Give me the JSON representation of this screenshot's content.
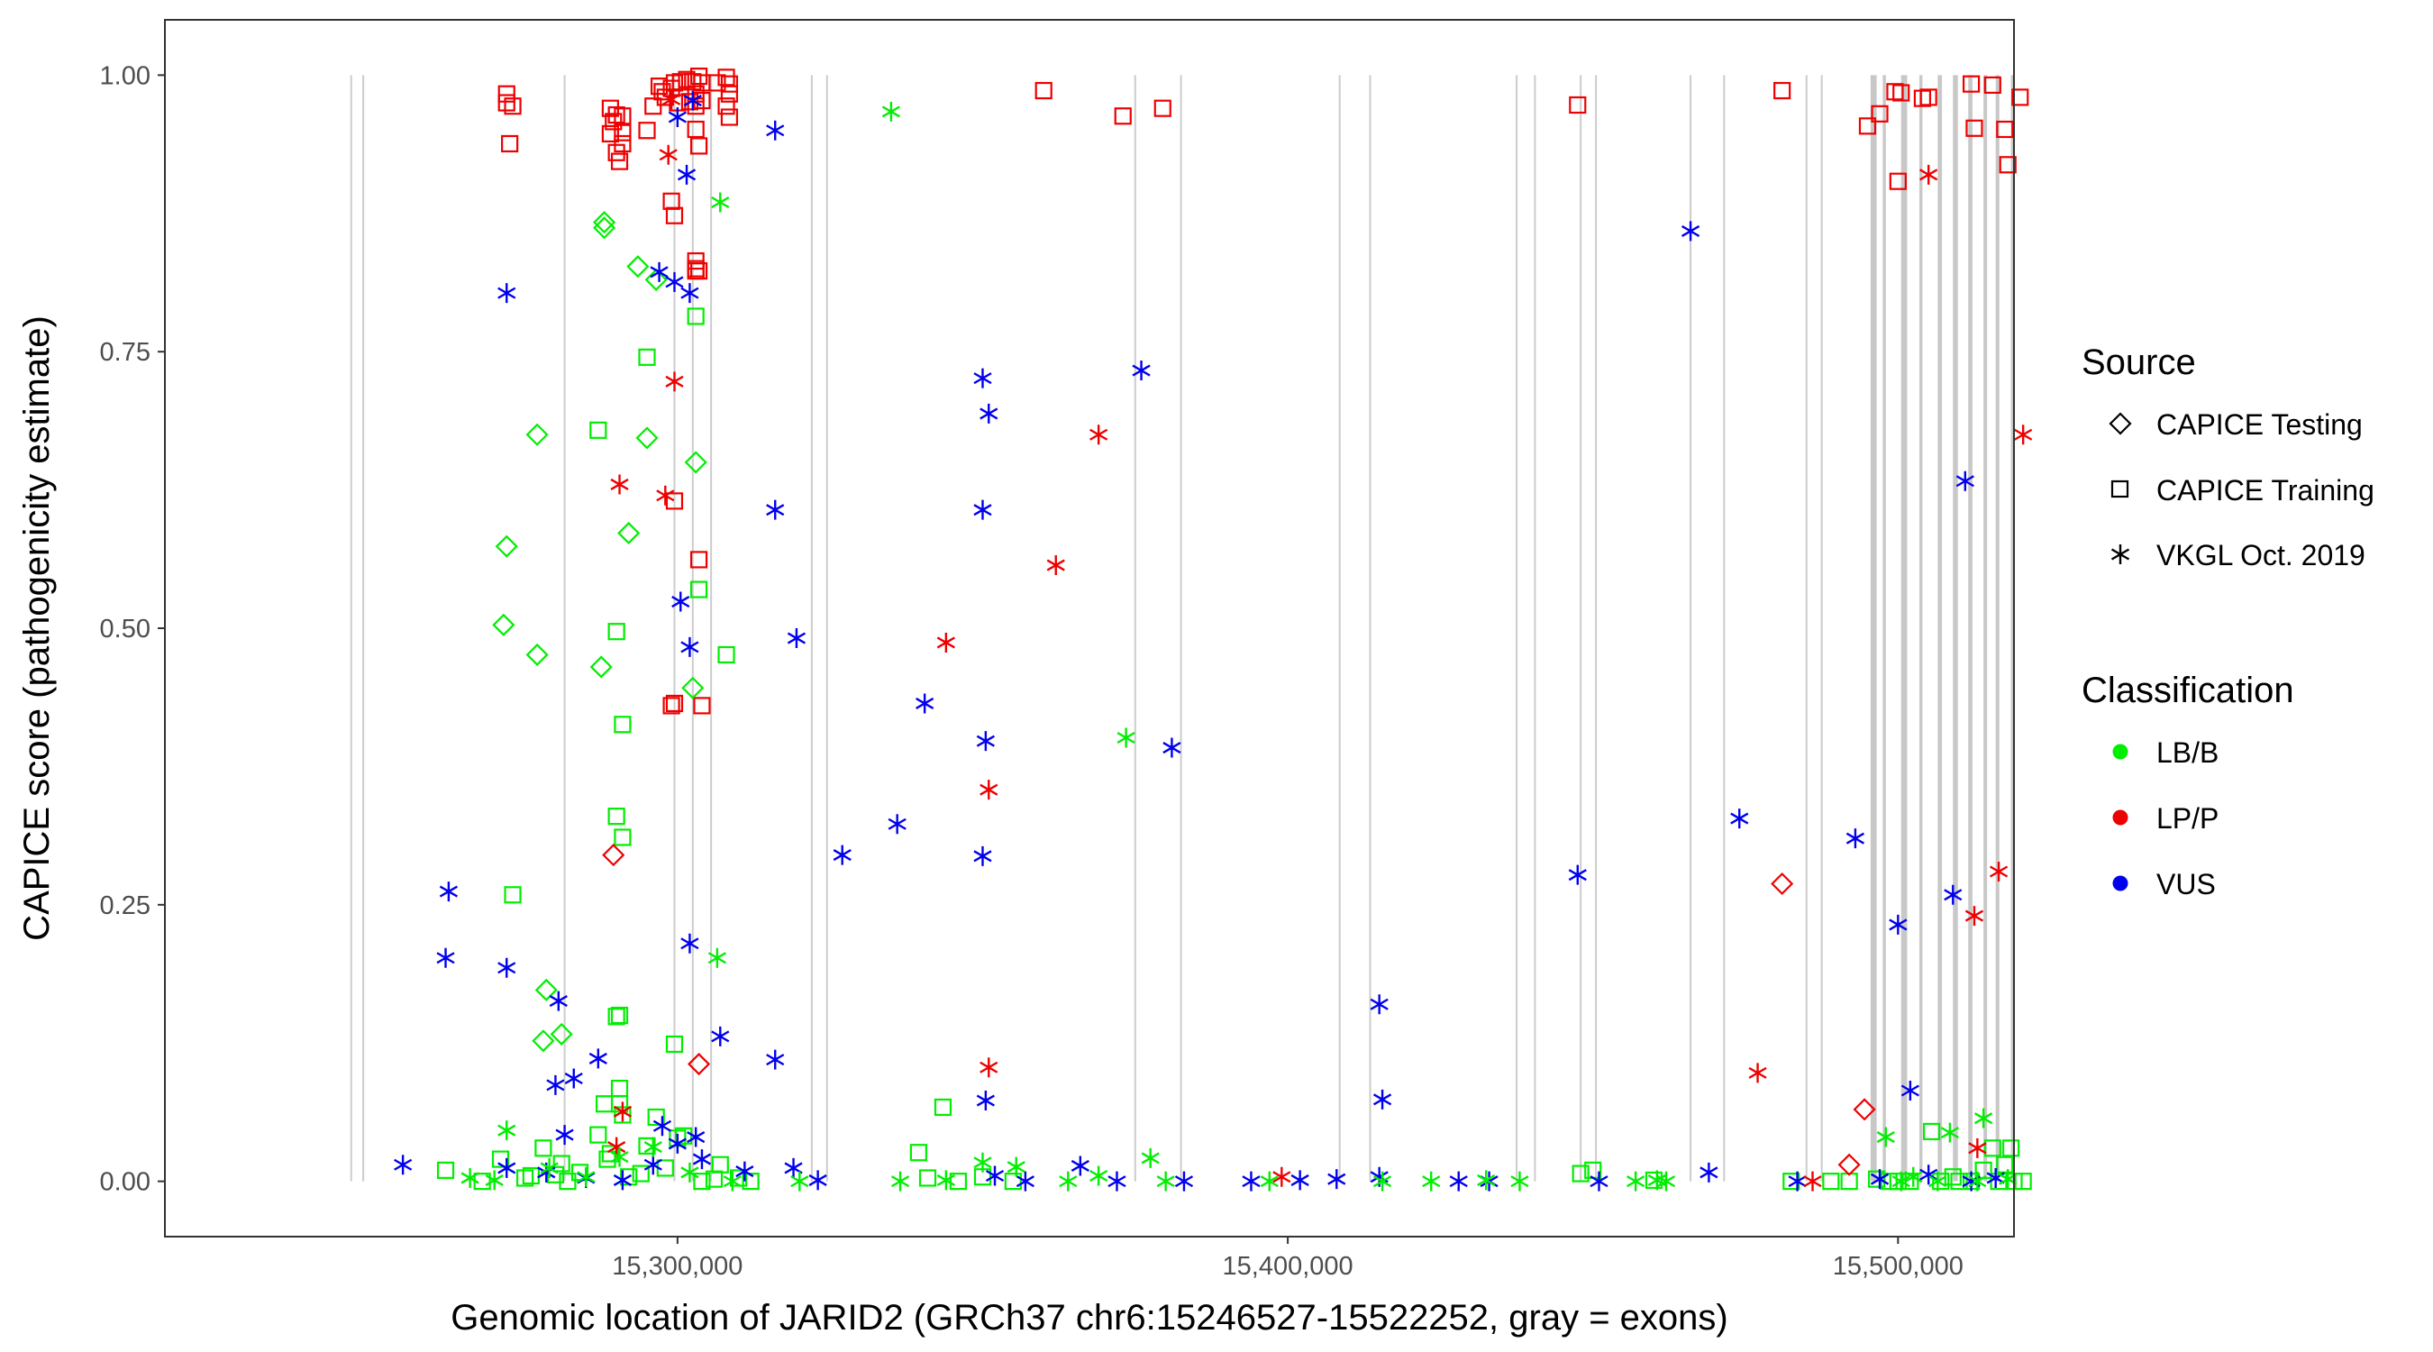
{
  "chart_data": {
    "type": "scatter",
    "xlabel": "Genomic location of JARID2 (GRCh37 chr6:15246527-15522252, gray = exons)",
    "ylabel": "CAPICE score (pathogenicity estimate)",
    "xlim": [
      15216000,
      15519000
    ],
    "ylim": [
      -0.05,
      1.05
    ],
    "x_ticks": [
      15300000,
      15400000,
      15500000
    ],
    "x_tick_labels": [
      "15,300,000",
      "15,400,000",
      "15,500,000"
    ],
    "y_ticks": [
      0,
      0.25,
      0.5,
      0.75,
      1
    ],
    "y_tick_labels": [
      "0.00",
      "0.25",
      "0.50",
      "0.75",
      "1.00"
    ],
    "exon_lines": [
      15246527,
      15248500,
      15281500,
      15299500,
      15302500,
      15305500,
      15322000,
      15324500,
      15375000,
      15382500,
      15408500,
      15413500,
      15437500,
      15440500,
      15448000,
      15450500,
      15466000,
      15471500,
      15485000,
      15487500
    ],
    "exon_bands": [
      [
        15495500,
        15496500
      ],
      [
        15497500,
        15498000
      ],
      [
        15500500,
        15501500
      ],
      [
        15503500,
        15504000
      ],
      [
        15506500,
        15507200
      ],
      [
        15509000,
        15509800
      ],
      [
        15511500,
        15512200
      ],
      [
        15514000,
        15514600
      ],
      [
        15516000,
        15516600
      ],
      [
        15518500,
        15519000
      ]
    ],
    "legend": {
      "source_title": "Source",
      "source_items": [
        "CAPICE Testing",
        "CAPICE Training",
        "VKGL Oct. 2019"
      ],
      "class_title": "Classification",
      "class_items": [
        "LB/B",
        "LP/P",
        "VUS"
      ]
    },
    "colors": {
      "LB/B": "#00ee00",
      "LP/P": "#ee0000",
      "VUS": "#0000ee"
    },
    "series": [
      {
        "source": "CAPICE Training",
        "classification": "LP/P",
        "x": [
          15272000,
          15272000,
          15272500,
          15273000,
          15289500,
          15289000,
          15290000,
          15291000,
          15291000,
          15290500,
          15290000,
          15291000,
          15289000,
          15295000,
          15296000,
          15297500,
          15298000,
          15297000,
          15299000,
          15299500,
          15300000,
          15300500,
          15301500,
          15302500,
          15303000,
          15303500,
          15304000,
          15303000,
          15302000,
          15304000,
          15303000,
          15303500,
          15303000,
          15306500,
          15308000,
          15308500,
          15308500,
          15308000,
          15308500,
          15299000,
          15299500,
          15303000,
          15303000,
          15303500,
          15299500,
          15303500,
          15304000,
          15299000,
          15299500,
          15360000,
          15373000,
          15379500,
          15447500,
          15481000,
          15495000,
          15497000,
          15499500,
          15500500,
          15500000,
          15504000,
          15505000,
          15512000,
          15512500,
          15515500,
          15517500,
          15518000,
          15520000
        ],
        "y": [
          0.983,
          0.975,
          0.938,
          0.972,
          0.958,
          0.97,
          0.964,
          0.948,
          0.938,
          0.922,
          0.93,
          0.963,
          0.947,
          0.95,
          0.972,
          0.985,
          0.98,
          0.99,
          0.988,
          0.993,
          0.975,
          0.994,
          0.996,
          0.994,
          0.972,
          0.999,
          0.993,
          0.983,
          0.976,
          0.977,
          0.951,
          0.936,
          0.832,
          0.993,
          0.998,
          0.992,
          0.983,
          0.972,
          0.962,
          0.886,
          0.873,
          0.823,
          0.825,
          0.823,
          0.615,
          0.562,
          0.43,
          0.43,
          0.432,
          0.986,
          0.963,
          0.97,
          0.973,
          0.986,
          0.954,
          0.965,
          0.985,
          0.984,
          0.904,
          0.979,
          0.98,
          0.992,
          0.952,
          0.991,
          0.951,
          0.919,
          0.98
        ]
      },
      {
        "source": "CAPICE Training",
        "classification": "LB/B",
        "x": [
          15303000,
          15295000,
          15287000,
          15273000,
          15290000,
          15303500,
          15291000,
          15308000,
          15290000,
          15290000,
          15290500,
          15291000,
          15280000,
          15290500,
          15291000,
          15299500,
          15290500,
          15288000,
          15296500,
          15343500,
          15262000,
          15268000,
          15271000,
          15275000,
          15278000,
          15281000,
          15284000,
          15287000,
          15289000,
          15292000,
          15295000,
          15298000,
          15301000,
          15304000,
          15307000,
          15310000,
          15312000,
          15276000,
          15282000,
          15288500,
          15294000,
          15300000,
          15306000,
          15339500,
          15341000,
          15346000,
          15350000,
          15355000,
          15448000,
          15450000,
          15460000,
          15482500,
          15489000,
          15492000,
          15496500,
          15498500,
          15502000,
          15505500,
          15507000,
          15509000,
          15512000,
          15514000,
          15515500,
          15516500,
          15517500,
          15518500,
          15519000,
          15500000,
          15510000,
          15520500
        ],
        "y": [
          0.782,
          0.745,
          0.679,
          0.259,
          0.497,
          0.535,
          0.413,
          0.476,
          0.33,
          0.149,
          0.15,
          0.311,
          0.006,
          0.084,
          0.06,
          0.124,
          0.07,
          0.07,
          0.058,
          0.067,
          0.01,
          0.0,
          0.02,
          0.003,
          0.03,
          0.016,
          0.008,
          0.042,
          0.025,
          0.004,
          0.032,
          0.012,
          0.041,
          0.0,
          0.015,
          0.003,
          0.0,
          0.005,
          0.0,
          0.02,
          0.007,
          0.039,
          0.002,
          0.026,
          0.003,
          0.0,
          0.004,
          0.0,
          0.007,
          0.01,
          0.001,
          0.0,
          0.0,
          0.0,
          0.002,
          0.0,
          0.0,
          0.045,
          0.0,
          0.004,
          0.0,
          0.01,
          0.03,
          0.0,
          0.015,
          0.03,
          0.0,
          0.0,
          0.0,
          0.0
        ]
      },
      {
        "source": "CAPICE Testing",
        "classification": "LB/B",
        "x": [
          15288000,
          15288000,
          15293500,
          15296500,
          15277000,
          15295000,
          15272000,
          15271500,
          15277000,
          15292000,
          15303000,
          15287500,
          15302500,
          15278500,
          15278000,
          15281000
        ],
        "y": [
          0.867,
          0.862,
          0.827,
          0.815,
          0.675,
          0.672,
          0.574,
          0.503,
          0.476,
          0.586,
          0.65,
          0.465,
          0.446,
          0.173,
          0.127,
          0.133
        ]
      },
      {
        "source": "CAPICE Testing",
        "classification": "LP/P",
        "x": [
          15289500,
          15303500,
          15481000,
          15494500,
          15492000
        ],
        "y": [
          0.295,
          0.106,
          0.269,
          0.065,
          0.015
        ]
      },
      {
        "source": "VKGL Oct. 2019",
        "classification": "VUS",
        "x": [
          15302500,
          15300000,
          15316000,
          15301500,
          15302000,
          15297000,
          15299500,
          15272000,
          15350000,
          15351000,
          15376000,
          15350000,
          15316000,
          15300500,
          15302000,
          15319500,
          15350500,
          15336000,
          15381000,
          15340500,
          15327000,
          15350000,
          15262500,
          15262000,
          15272000,
          15302000,
          15280500,
          15307000,
          15316000,
          15287000,
          15283000,
          15280000,
          15350500,
          15415000,
          15415500,
          15447500,
          15466000,
          15474000,
          15493000,
          15500000,
          15511000,
          15509000,
          15502000,
          15255000,
          15281500,
          15297500,
          15303000,
          15272000,
          15278500,
          15285000,
          15291000,
          15296000,
          15300000,
          15304000,
          15311000,
          15319000,
          15323000,
          15352000,
          15357000,
          15366000,
          15372000,
          15383000,
          15394000,
          15402000,
          15408000,
          15415000,
          15428000,
          15433000,
          15451000,
          15469000,
          15483500,
          15497000,
          15505000,
          15512000,
          15516000
        ],
        "y": [
          0.977,
          0.962,
          0.95,
          0.91,
          0.803,
          0.822,
          0.813,
          0.803,
          0.726,
          0.694,
          0.733,
          0.607,
          0.607,
          0.524,
          0.483,
          0.491,
          0.398,
          0.323,
          0.392,
          0.432,
          0.295,
          0.294,
          0.262,
          0.202,
          0.193,
          0.215,
          0.163,
          0.131,
          0.11,
          0.111,
          0.093,
          0.087,
          0.073,
          0.16,
          0.074,
          0.277,
          0.859,
          0.328,
          0.31,
          0.232,
          0.633,
          0.259,
          0.082,
          0.015,
          0.042,
          0.05,
          0.04,
          0.012,
          0.008,
          0.003,
          0.001,
          0.015,
          0.034,
          0.02,
          0.009,
          0.012,
          0.001,
          0.005,
          0.0,
          0.014,
          0.0,
          0.0,
          0.0,
          0.001,
          0.002,
          0.004,
          0.0,
          0.0,
          0.0,
          0.008,
          0.0,
          0.002,
          0.006,
          0.0,
          0.003
        ]
      },
      {
        "source": "VKGL Oct. 2019",
        "classification": "LP/P",
        "x": [
          15298500,
          15299500,
          15290500,
          15298000,
          15369000,
          15362000,
          15344000,
          15351000,
          15351000,
          15505000,
          15520500,
          15516500,
          15512500,
          15477000,
          15486000,
          15513000,
          15291000,
          15290000,
          15399000,
          15299000
        ],
        "y": [
          0.928,
          0.723,
          0.63,
          0.62,
          0.675,
          0.557,
          0.487,
          0.354,
          0.103,
          0.91,
          0.675,
          0.28,
          0.24,
          0.098,
          0.0,
          0.03,
          0.063,
          0.031,
          0.004,
          0.978
        ]
      },
      {
        "source": "VKGL Oct. 2019",
        "classification": "LB/B",
        "x": [
          15307000,
          15335000,
          15373500,
          15306500,
          15272000,
          15350000,
          15377500,
          15514000,
          15508500,
          15498000,
          15266000,
          15270000,
          15279000,
          15285000,
          15290500,
          15296000,
          15302000,
          15309000,
          15320000,
          15336500,
          15344000,
          15355500,
          15364000,
          15369000,
          15380000,
          15397000,
          15415500,
          15423500,
          15432500,
          15438000,
          15457000,
          15460500,
          15462000,
          15500500,
          15502500,
          15506500,
          15513000,
          15518000
        ],
        "y": [
          0.885,
          0.967,
          0.401,
          0.202,
          0.046,
          0.017,
          0.021,
          0.057,
          0.044,
          0.04,
          0.003,
          0.001,
          0.012,
          0.004,
          0.022,
          0.031,
          0.008,
          0.0,
          0.0,
          0.0,
          0.001,
          0.013,
          0.0,
          0.005,
          0.0,
          0.0,
          0.0,
          0.0,
          0.001,
          0.0,
          0.0,
          0.001,
          0.0,
          0.0,
          0.004,
          0.0,
          0.0,
          0.002
        ]
      }
    ]
  }
}
